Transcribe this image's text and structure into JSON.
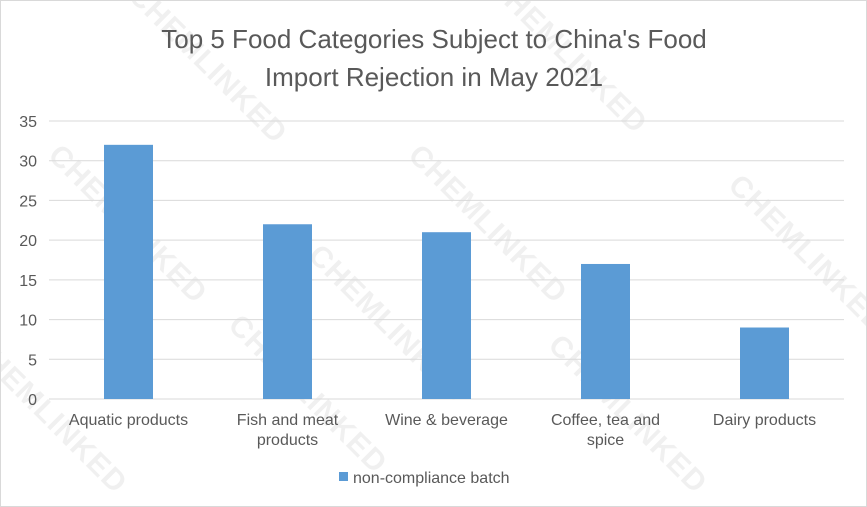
{
  "chart_data": {
    "type": "bar",
    "title": "Top 5 Food Categories Subject to China's Food Import Rejection in May 2021",
    "title_lines": [
      "Top 5 Food Categories Subject to China's Food",
      "Import Rejection in May 2021"
    ],
    "categories": [
      [
        "Aquatic products"
      ],
      [
        "Fish and meat",
        "products"
      ],
      [
        "Wine & beverage"
      ],
      [
        "Coffee, tea and",
        "spice"
      ],
      [
        "Dairy products"
      ]
    ],
    "series": [
      {
        "name": "non-compliance batch",
        "values": [
          32,
          22,
          21,
          17,
          9
        ],
        "color": "#5b9bd5"
      }
    ],
    "yticks": [
      "0",
      "5",
      "10",
      "15",
      "20",
      "25",
      "30",
      "35"
    ],
    "ylim": [
      0,
      35
    ],
    "grid": true,
    "legend_position": "bottom",
    "xlabel": "",
    "ylabel": ""
  },
  "watermark": "CHEMLINKED",
  "colors": {
    "bar": "#5b9bd5",
    "grid": "#d9d9d9",
    "text": "#595959"
  }
}
